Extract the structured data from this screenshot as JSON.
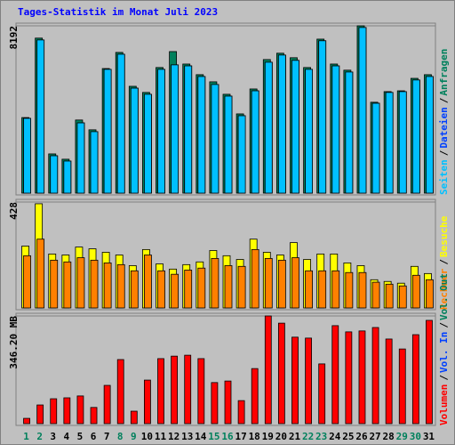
{
  "chart_data": [
    {
      "type": "bar",
      "title": "Tages-Statistik im Monat Juli 2023",
      "legend_separator": "/",
      "ylim": [
        0,
        8192
      ],
      "yticks": [
        8192
      ],
      "series": [
        {
          "name": "Anfragen",
          "color": "#00805C",
          "values": [
            3700,
            7590,
            1920,
            1660,
            3580,
            3100,
            6100,
            6890,
            5230,
            4930,
            6150,
            6930,
            6320,
            5800,
            5450,
            4840,
            3880,
            5100,
            6540,
            6850,
            6630,
            6150,
            7540,
            6320,
            6020,
            8192,
            4450,
            4970,
            5010,
            5620,
            5800
          ]
        },
        {
          "name": "Dateien",
          "color": "#0040FF",
          "values": [
            3660,
            7500,
            1830,
            1570,
            3440,
            3010,
            6060,
            6800,
            5140,
            4840,
            6060,
            6280,
            6230,
            5710,
            5320,
            4750,
            3790,
            5010,
            6410,
            6760,
            6500,
            6060,
            7460,
            6230,
            5930,
            8110,
            4400,
            4930,
            4970,
            5540,
            5710
          ]
        },
        {
          "name": "Seiten",
          "color": "#00C0FF",
          "values": [
            3660,
            7500,
            1830,
            1570,
            3440,
            3010,
            6060,
            6800,
            5140,
            4840,
            6060,
            6280,
            6230,
            5710,
            5320,
            4750,
            3790,
            5010,
            6410,
            6760,
            6500,
            6060,
            7460,
            6230,
            5930,
            8110,
            4400,
            4930,
            4970,
            5540,
            5710
          ]
        }
      ]
    },
    {
      "type": "bar",
      "ylim": [
        0,
        428
      ],
      "yticks": [
        428
      ],
      "series": [
        {
          "name": "Besuche",
          "color": "#FFFF00",
          "values": [
            250,
            421,
            218,
            214,
            246,
            239,
            225,
            214,
            171,
            236,
            178,
            157,
            175,
            186,
            232,
            211,
            196,
            278,
            225,
            214,
            264,
            196,
            218,
            218,
            182,
            171,
            114,
            107,
            100,
            168,
            139
          ]
        },
        {
          "name": "Rechner",
          "color": "#FF8000",
          "values": [
            211,
            278,
            193,
            186,
            203,
            193,
            182,
            175,
            150,
            214,
            150,
            136,
            153,
            161,
            200,
            171,
            168,
            236,
            200,
            193,
            203,
            150,
            150,
            150,
            143,
            143,
            104,
            96,
            89,
            132,
            114
          ]
        }
      ]
    },
    {
      "type": "bar",
      "ylim": [
        0,
        346.2
      ],
      "yticks": [
        {
          "value": 346.2,
          "label": "346.20 MB"
        }
      ],
      "categories": [
        "1",
        "2",
        "3",
        "4",
        "5",
        "6",
        "7",
        "8",
        "9",
        "10",
        "11",
        "12",
        "13",
        "14",
        "15",
        "16",
        "17",
        "18",
        "19",
        "20",
        "21",
        "22",
        "23",
        "24",
        "25",
        "26",
        "27",
        "28",
        "29",
        "30",
        "31"
      ],
      "category_colors": [
        "#00805C",
        "#00805C",
        "#000000",
        "#000000",
        "#000000",
        "#000000",
        "#000000",
        "#00805C",
        "#00805C",
        "#000000",
        "#000000",
        "#000000",
        "#000000",
        "#000000",
        "#00805C",
        "#00805C",
        "#000000",
        "#000000",
        "#000000",
        "#000000",
        "#000000",
        "#00805C",
        "#00805C",
        "#000000",
        "#000000",
        "#000000",
        "#000000",
        "#000000",
        "#00805C",
        "#00805C",
        "#000000"
      ],
      "series": [
        {
          "name": "Volumen",
          "color": "#FF0000",
          "values": [
            17,
            60,
            80,
            83,
            89,
            52,
            123,
            206,
            40,
            140,
            209,
            217,
            220,
            209,
            132,
            137,
            74,
            177,
            346.2,
            323,
            278,
            275,
            192,
            315,
            295,
            298,
            309,
            272,
            240,
            286,
            332
          ]
        }
      ],
      "legend_extra": [
        {
          "name": "Vol. In",
          "color": "#0040FF"
        },
        {
          "name": "Vol. Out",
          "color": "#00805C"
        }
      ]
    }
  ]
}
